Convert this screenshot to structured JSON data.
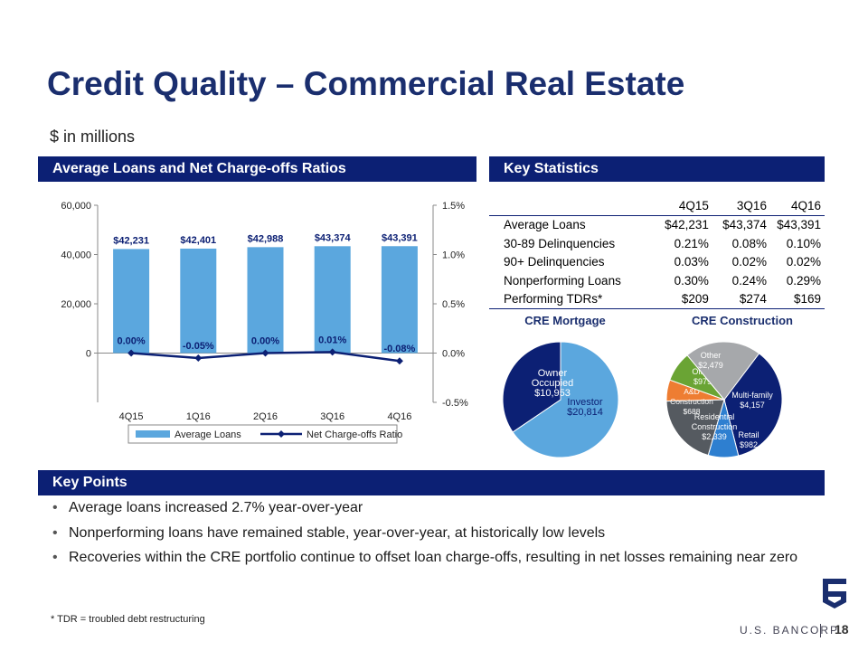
{
  "title": "Credit Quality – Commercial Real Estate",
  "subtitle": "$ in millions",
  "sections": {
    "chart": "Average Loans and Net Charge-offs Ratios",
    "stats": "Key Statistics",
    "points": "Key Points"
  },
  "stats_table": {
    "columns": [
      "",
      "4Q15",
      "3Q16",
      "4Q16"
    ],
    "rows": [
      {
        "label": "Average Loans",
        "values": [
          "$42,231",
          "$43,374",
          "$43,391"
        ]
      },
      {
        "label": "30-89 Delinquencies",
        "values": [
          "0.21%",
          "0.08%",
          "0.10%"
        ]
      },
      {
        "label": "90+ Delinquencies",
        "values": [
          "0.03%",
          "0.02%",
          "0.02%"
        ]
      },
      {
        "label": "Nonperforming Loans",
        "values": [
          "0.30%",
          "0.24%",
          "0.29%"
        ]
      },
      {
        "label": "Performing TDRs*",
        "values": [
          "$209",
          "$274",
          "$169"
        ]
      }
    ]
  },
  "chart_data": [
    {
      "type": "bar",
      "categories": [
        "4Q15",
        "1Q16",
        "2Q16",
        "3Q16",
        "4Q16"
      ],
      "series": [
        {
          "name": "Average Loans",
          "type": "bar",
          "axis": "left",
          "values": [
            42231,
            42401,
            42988,
            43374,
            43391
          ],
          "labels": [
            "$42,231",
            "$42,401",
            "$42,988",
            "$43,374",
            "$43,391"
          ],
          "color": "#5ba7de"
        },
        {
          "name": "Net Charge-offs Ratio",
          "type": "line",
          "axis": "right",
          "values": [
            0.0,
            -0.05,
            0.0,
            0.01,
            -0.08
          ],
          "labels": [
            "0.00%",
            "-0.05%",
            "0.00%",
            "0.01%",
            "-0.08%"
          ],
          "color": "#0c2074"
        }
      ],
      "ylim": [
        -20000,
        60000
      ],
      "yticks": [
        "60,000",
        "40,000",
        "20,000",
        "0"
      ],
      "yticks_values": [
        60000,
        40000,
        20000,
        0
      ],
      "y2lim": [
        -0.5,
        1.5
      ],
      "y2ticks": [
        "1.5%",
        "1.0%",
        "0.5%",
        "0.0%",
        "-0.5%"
      ],
      "y2ticks_values": [
        1.5,
        1.0,
        0.5,
        0.0,
        -0.5
      ],
      "legend": "bottom"
    },
    {
      "type": "pie",
      "title": "CRE Mortgage",
      "slices": [
        {
          "label": "Investor",
          "value": 20814,
          "value_label": "$20,814",
          "color": "#5ba7de"
        },
        {
          "label": "Owner Occupied",
          "value": 10953,
          "value_label": "$10,953",
          "color": "#0c2074"
        }
      ]
    },
    {
      "type": "pie",
      "title": "CRE Construction",
      "slices": [
        {
          "label": "Multi-family",
          "value": 4157,
          "value_label": "$4,157",
          "color": "#0c2074"
        },
        {
          "label": "Retail",
          "value": 982,
          "value_label": "$982",
          "color": "#2e7fd0"
        },
        {
          "label": "Residential Construction",
          "value": 2339,
          "value_label": "$2,339",
          "color": "#555a60"
        },
        {
          "label": "A&D Construction",
          "value": 688,
          "value_label": "$688",
          "color": "#ee7d32"
        },
        {
          "label": "Office",
          "value": 979,
          "value_label": "$979",
          "color": "#6aa434"
        },
        {
          "label": "Other",
          "value": 2479,
          "value_label": "$2,479",
          "color": "#a6a8ab"
        }
      ]
    }
  ],
  "key_points": [
    "Average loans increased 2.7% year-over-year",
    "Nonperforming loans have remained stable, year-over-year, at historically low levels",
    "Recoveries within the CRE portfolio continue to offset loan charge-offs, resulting in net losses remaining near zero"
  ],
  "footnote": "* TDR = troubled debt restructuring",
  "brand": "U.S. BANCORP",
  "page_number": "18"
}
